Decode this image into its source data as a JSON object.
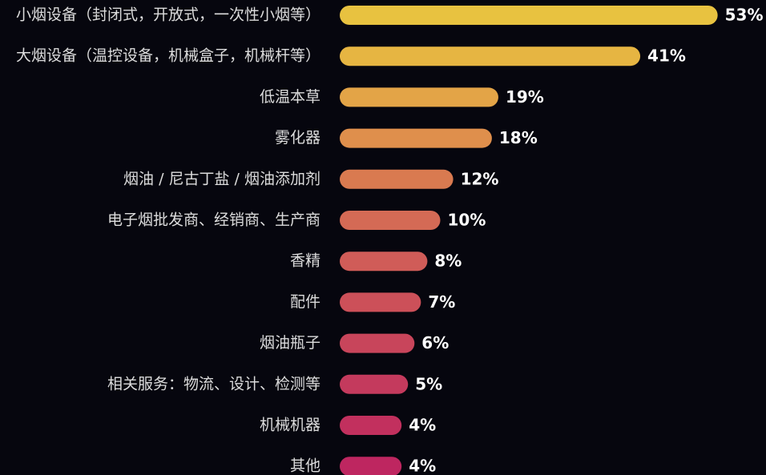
{
  "chart_data": {
    "type": "bar",
    "categories": [
      "小烟设备（封闭式，开放式，一次性小烟等）",
      "大烟设备（温控设备，机械盒子，机械杆等）",
      "低温本草",
      "雾化器",
      "烟油 / 尼古丁盐 / 烟油添加剂",
      "电子烟批发商、经销商、生产商",
      "香精",
      "配件",
      "烟油瓶子",
      "相关服务：物流、设计、检测等",
      "机械机器",
      "其他"
    ],
    "values": [
      53,
      41,
      19,
      18,
      12,
      10,
      8,
      7,
      6,
      5,
      4,
      4
    ],
    "value_labels": [
      "53%",
      "41%",
      "19%",
      "18%",
      "12%",
      "10%",
      "8%",
      "7%",
      "6%",
      "5%",
      "4%",
      "4%"
    ],
    "colors": [
      "#e8c240",
      "#e6b542",
      "#e3a447",
      "#df8f4c",
      "#d97a50",
      "#d46a55",
      "#d05c58",
      "#cc5059",
      "#c8455b",
      "#c43a5d",
      "#c2305e",
      "#be2660"
    ]
  }
}
